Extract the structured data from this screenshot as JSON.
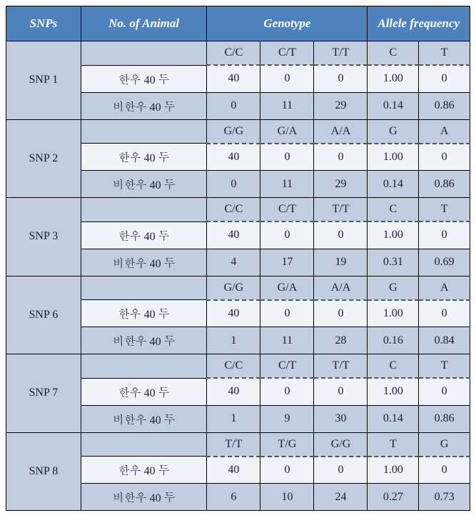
{
  "header": {
    "snps": "SNPs",
    "no_animal": "No. of Animal",
    "genotype": "Genotype",
    "allele": "Allele frequency"
  },
  "labels": {
    "hanwoo": "한우 40 두",
    "nonhanwoo": "비한우 40 두"
  },
  "colors": {
    "header_bg": "#4f81bd",
    "header_fg": "#ffffff",
    "row_light": "#f0f3f8",
    "row_dark": "#c2cee0",
    "text": "#1a1a40",
    "border": "#000000",
    "dashed": "#555555"
  },
  "groups": [
    {
      "name": "SNP 1",
      "g_headers": [
        "C/C",
        "C/T",
        "T/T"
      ],
      "a_headers": [
        "C",
        "T"
      ],
      "rows": [
        {
          "label_key": "hanwoo",
          "g": [
            "40",
            "0",
            "0"
          ],
          "a": [
            "1.00",
            "0"
          ]
        },
        {
          "label_key": "nonhanwoo",
          "g": [
            "0",
            "11",
            "29"
          ],
          "a": [
            "0.14",
            "0.86"
          ]
        }
      ]
    },
    {
      "name": "SNP 2",
      "g_headers": [
        "G/G",
        "G/A",
        "A/A"
      ],
      "a_headers": [
        "G",
        "A"
      ],
      "rows": [
        {
          "label_key": "hanwoo",
          "g": [
            "40",
            "0",
            "0"
          ],
          "a": [
            "1.00",
            "0"
          ]
        },
        {
          "label_key": "nonhanwoo",
          "g": [
            "0",
            "11",
            "29"
          ],
          "a": [
            "0.14",
            "0.86"
          ]
        }
      ]
    },
    {
      "name": "SNP 3",
      "g_headers": [
        "C/C",
        "C/T",
        "T/T"
      ],
      "a_headers": [
        "C",
        "T"
      ],
      "rows": [
        {
          "label_key": "hanwoo",
          "g": [
            "40",
            "0",
            "0"
          ],
          "a": [
            "1.00",
            "0"
          ]
        },
        {
          "label_key": "nonhanwoo",
          "g": [
            "4",
            "17",
            "19"
          ],
          "a": [
            "0.31",
            "0.69"
          ]
        }
      ]
    },
    {
      "name": "SNP 6",
      "g_headers": [
        "G/G",
        "G/A",
        "A/A"
      ],
      "a_headers": [
        "G",
        "A"
      ],
      "rows": [
        {
          "label_key": "hanwoo",
          "g": [
            "40",
            "0",
            "0"
          ],
          "a": [
            "1.00",
            "0"
          ]
        },
        {
          "label_key": "nonhanwoo",
          "g": [
            "1",
            "11",
            "28"
          ],
          "a": [
            "0.16",
            "0.84"
          ]
        }
      ]
    },
    {
      "name": "SNP 7",
      "g_headers": [
        "C/C",
        "C/T",
        "T/T"
      ],
      "a_headers": [
        "C",
        "T"
      ],
      "rows": [
        {
          "label_key": "hanwoo",
          "g": [
            "40",
            "0",
            "0"
          ],
          "a": [
            "1.00",
            "0"
          ]
        },
        {
          "label_key": "nonhanwoo",
          "g": [
            "1",
            "9",
            "30"
          ],
          "a": [
            "0.14",
            "0.86"
          ]
        }
      ]
    },
    {
      "name": "SNP 8",
      "g_headers": [
        "T/T",
        "T/G",
        "G/G"
      ],
      "a_headers": [
        "T",
        "G"
      ],
      "rows": [
        {
          "label_key": "hanwoo",
          "g": [
            "40",
            "0",
            "0"
          ],
          "a": [
            "1.00",
            "0"
          ]
        },
        {
          "label_key": "nonhanwoo",
          "g": [
            "6",
            "10",
            "24"
          ],
          "a": [
            "0.27",
            "0.73"
          ]
        }
      ]
    }
  ]
}
